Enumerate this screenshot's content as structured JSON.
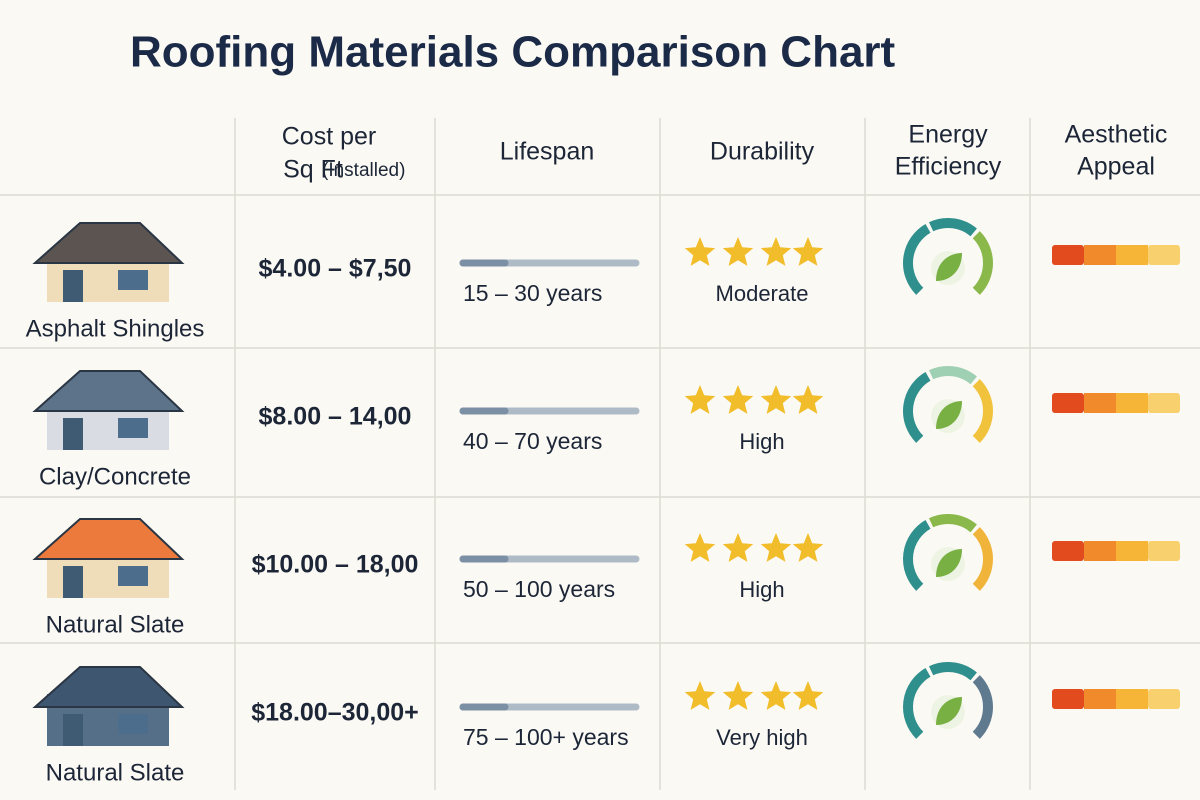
{
  "title": "Roofing Materials Comparison Chart",
  "columns": {
    "cost": {
      "title": "Cost per",
      "subtitle": "Sq Ft",
      "note": "(Installed)"
    },
    "lifespan": "Lifespan",
    "durability": "Durability",
    "energy": [
      "Energy",
      "Efficiency"
    ],
    "aesthetic": [
      "Aesthetic",
      "Appeal"
    ]
  },
  "rows": [
    {
      "material": "Asphalt Shingles",
      "cost": "$4.00 – $7,50",
      "lifespan": "15 – 30 years",
      "durability": "Moderate"
    },
    {
      "material": "Clay/Concrete",
      "cost": "$8.00 – 14,00",
      "lifespan": "40 – 70 years",
      "durability": "High"
    },
    {
      "material": "Natural Slate",
      "cost": "$10.00 – 18,00",
      "lifespan": "50 – 100 years",
      "durability": "High"
    },
    {
      "material": "Natural Slate",
      "cost": "$18.00–30,00+",
      "lifespan": "75 – 100+ years",
      "durability": "Very high"
    }
  ]
}
